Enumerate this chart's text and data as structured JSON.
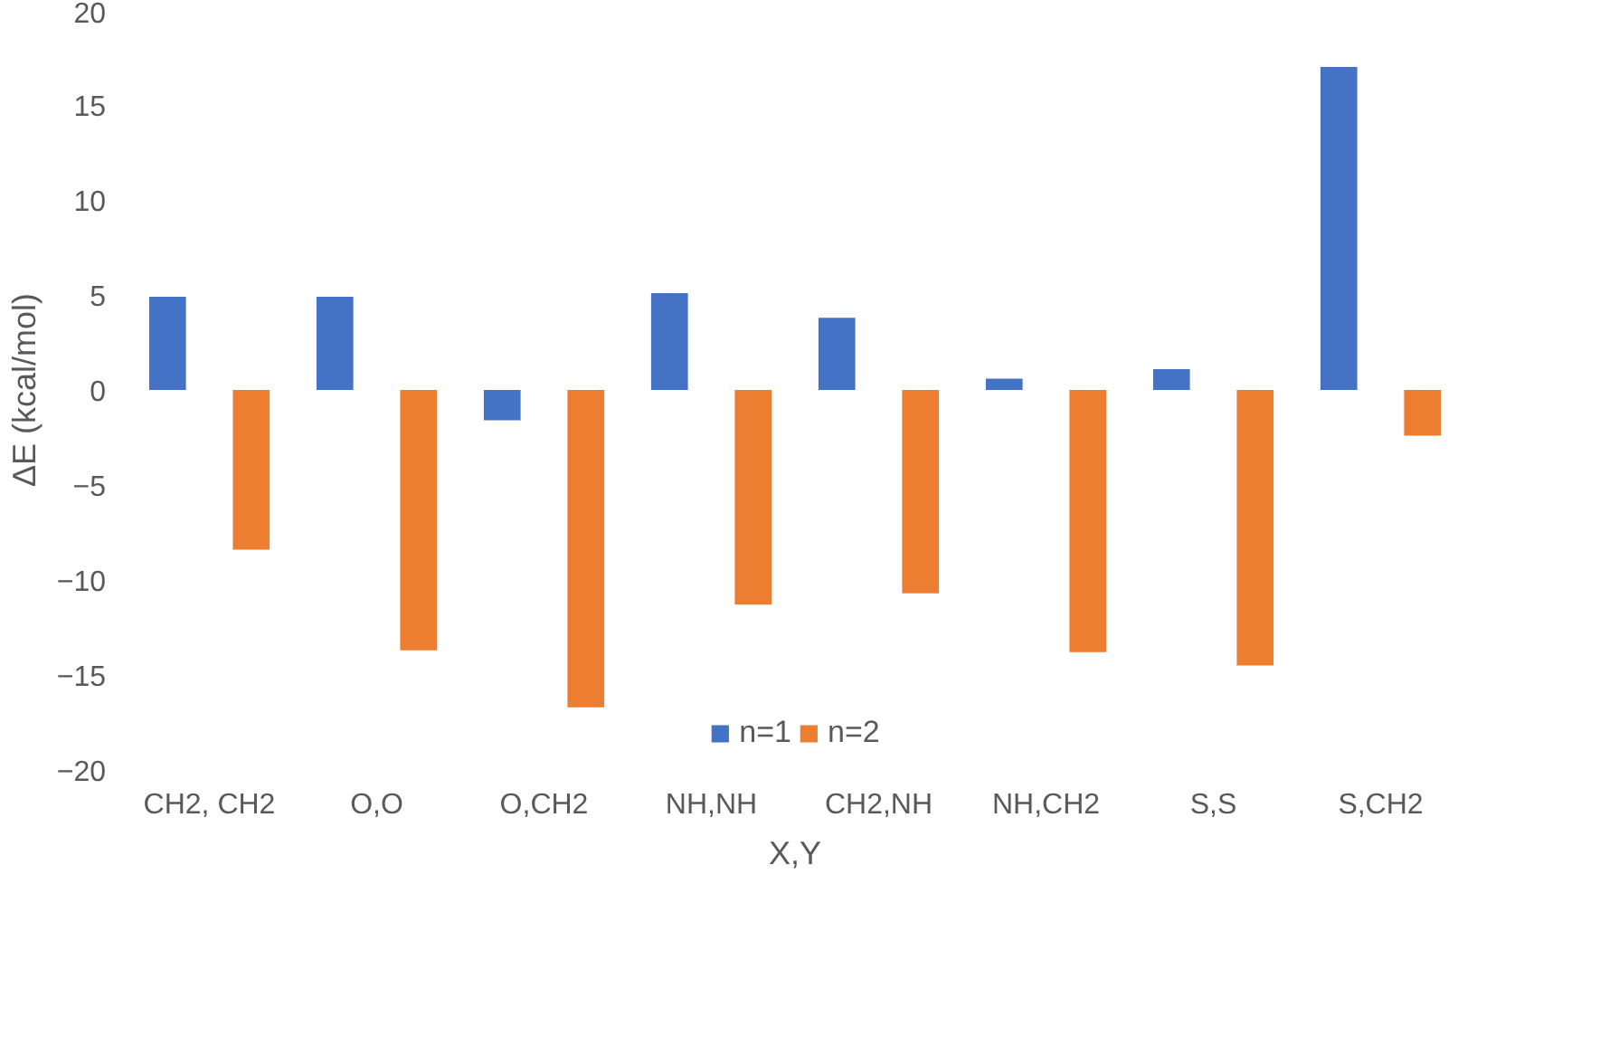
{
  "chart_data": {
    "type": "bar",
    "xlabel": "X,Y",
    "ylabel": "ΔE (kcal/mol)",
    "categories": [
      "CH2, CH2",
      "O,O",
      "O,CH2",
      "NH,NH",
      "CH2,NH",
      "NH,CH2",
      "S,S",
      "S,CH2"
    ],
    "series": [
      {
        "name": "n=1",
        "color": "#4472c4",
        "values": [
          4.9,
          4.9,
          -1.6,
          5.1,
          3.8,
          0.6,
          1.1,
          17.0
        ]
      },
      {
        "name": "n=2",
        "color": "#ed7d31",
        "values": [
          -8.4,
          -13.7,
          -16.7,
          -11.3,
          -10.7,
          -13.8,
          -14.5,
          -2.4
        ]
      }
    ],
    "ylim": [
      -20,
      20
    ],
    "yticks": [
      -20,
      -15,
      -10,
      -5,
      0,
      5,
      10,
      15,
      20
    ],
    "grid": false,
    "legend": "bottom"
  }
}
